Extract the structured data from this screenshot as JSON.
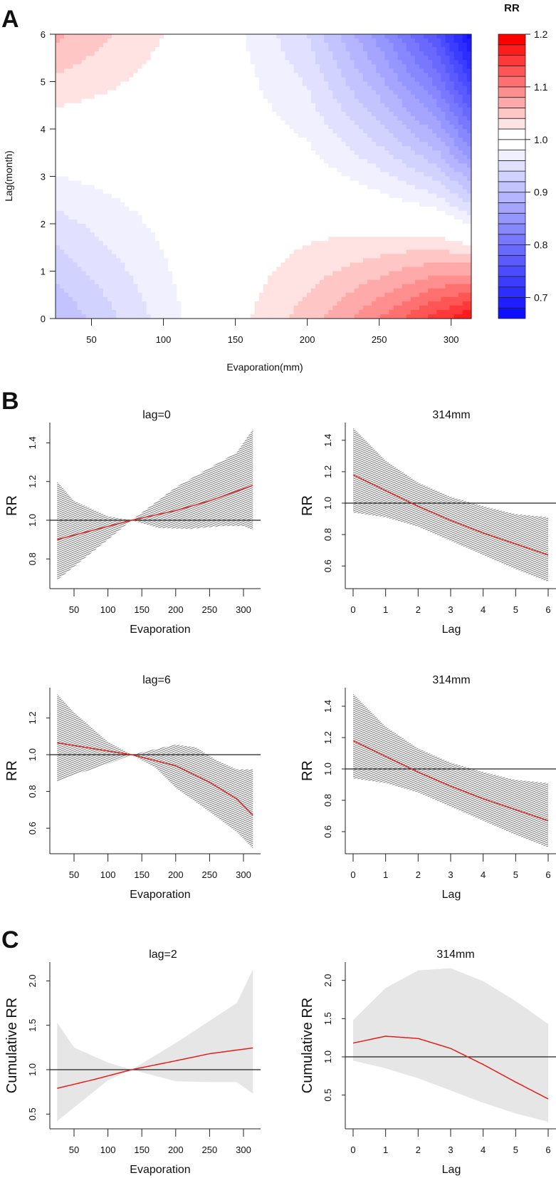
{
  "panel_labels": {
    "a": "A",
    "b": "B",
    "c": "C"
  },
  "colors": {
    "low": "#0000FF",
    "mid": "#FFFFFF",
    "high": "#FF0000",
    "ci_hatch": "#666666",
    "ci_fill": "#E6E6E6",
    "curve": "#E0201B"
  },
  "chart_data": [
    {
      "panel": "A",
      "type": "heatmap",
      "xlabel": "Evaporation(mm)",
      "ylabel": "Lag(month)",
      "xlim": [
        25,
        314
      ],
      "ylim": [
        0,
        6
      ],
      "xticks": [
        "50",
        "100",
        "150",
        "200",
        "250",
        "300"
      ],
      "yticks": [
        "0",
        "1",
        "2",
        "3",
        "4",
        "5",
        "6"
      ],
      "legend_title": "RR",
      "legend_ticks": [
        "0.7",
        "0.8",
        "0.9",
        "1.0",
        "1.1",
        "1.2"
      ],
      "levels": {
        "min": 0.66,
        "max": 1.2,
        "step": 0.02
      },
      "legend_placement": "right"
    },
    {
      "panel": "B",
      "type": "line",
      "title": "lag=0",
      "xlabel": "Evaporation",
      "ylabel": "RR",
      "xticks": [
        "50",
        "100",
        "150",
        "200",
        "250",
        "300"
      ],
      "yticks": [
        "0.8",
        "1.0",
        "1.2",
        "1.4"
      ],
      "reference": 1.0,
      "ci_style": "hatched",
      "rr": {
        "x": [
          25,
          135,
          200,
          250,
          314
        ],
        "y": [
          0.9,
          1.0,
          1.05,
          1.1,
          1.18
        ]
      },
      "upper": {
        "x": [
          25,
          50,
          100,
          135,
          200,
          250,
          290,
          314
        ],
        "y": [
          1.2,
          1.1,
          1.02,
          1.0,
          1.17,
          1.27,
          1.35,
          1.47
        ]
      },
      "lower": {
        "x": [
          25,
          50,
          100,
          135,
          175,
          220,
          270,
          300,
          314
        ],
        "y": [
          0.69,
          0.76,
          0.9,
          1.0,
          0.96,
          0.955,
          0.97,
          0.97,
          0.95
        ]
      }
    },
    {
      "panel": "B",
      "type": "line",
      "title": "314mm",
      "xlabel": "Lag",
      "ylabel": "RR",
      "xticks": [
        "0",
        "1",
        "2",
        "3",
        "4",
        "5",
        "6"
      ],
      "yticks": [
        "0.6",
        "0.8",
        "1.0",
        "1.2",
        "1.4"
      ],
      "reference": 1.0,
      "ci_style": "hatched",
      "rr": {
        "x": [
          0,
          1,
          2,
          3,
          4,
          5,
          6
        ],
        "y": [
          1.18,
          1.08,
          0.98,
          0.89,
          0.81,
          0.74,
          0.67
        ]
      },
      "upper": {
        "x": [
          0,
          1,
          2,
          3,
          4,
          5,
          6
        ],
        "y": [
          1.48,
          1.27,
          1.13,
          1.04,
          0.98,
          0.93,
          0.91
        ]
      },
      "lower": {
        "x": [
          0,
          1,
          2,
          3,
          4,
          5,
          6
        ],
        "y": [
          0.94,
          0.91,
          0.85,
          0.76,
          0.67,
          0.58,
          0.5
        ]
      }
    },
    {
      "panel": "B",
      "type": "line",
      "title": "lag=6",
      "xlabel": "Evaporation",
      "ylabel": "RR",
      "xticks": [
        "50",
        "100",
        "150",
        "200",
        "250",
        "300"
      ],
      "yticks": [
        "0.6",
        "0.8",
        "1.0",
        "1.2"
      ],
      "reference": 1.0,
      "ci_style": "hatched",
      "rr": {
        "x": [
          25,
          100,
          135,
          200,
          250,
          290,
          314
        ],
        "y": [
          1.065,
          1.02,
          1.0,
          0.94,
          0.85,
          0.76,
          0.67
        ]
      },
      "upper": {
        "x": [
          25,
          50,
          100,
          135,
          170,
          200,
          230,
          260,
          290,
          314
        ],
        "y": [
          1.33,
          1.23,
          1.07,
          1.0,
          1.03,
          1.055,
          1.04,
          0.97,
          0.92,
          0.92
        ]
      },
      "lower": {
        "x": [
          25,
          50,
          100,
          135,
          170,
          200,
          250,
          290,
          314
        ],
        "y": [
          0.85,
          0.89,
          0.95,
          1.0,
          0.93,
          0.82,
          0.69,
          0.58,
          0.49
        ]
      }
    },
    {
      "panel": "B",
      "type": "line",
      "title": "314mm",
      "xlabel": "Lag",
      "ylabel": "RR",
      "xticks": [
        "0",
        "1",
        "2",
        "3",
        "4",
        "5",
        "6"
      ],
      "yticks": [
        "0.6",
        "0.8",
        "1.0",
        "1.2",
        "1.4"
      ],
      "reference": 1.0,
      "ci_style": "hatched",
      "rr": {
        "x": [
          0,
          1,
          2,
          3,
          4,
          5,
          6
        ],
        "y": [
          1.18,
          1.08,
          0.98,
          0.89,
          0.81,
          0.74,
          0.67
        ]
      },
      "upper": {
        "x": [
          0,
          1,
          2,
          3,
          4,
          5,
          6
        ],
        "y": [
          1.48,
          1.27,
          1.13,
          1.04,
          0.98,
          0.93,
          0.91
        ]
      },
      "lower": {
        "x": [
          0,
          1,
          2,
          3,
          4,
          5,
          6
        ],
        "y": [
          0.94,
          0.91,
          0.85,
          0.76,
          0.67,
          0.58,
          0.5
        ]
      }
    },
    {
      "panel": "C",
      "type": "line",
      "title": "lag=2",
      "xlabel": "Evaporation",
      "ylabel": "Cumulative RR",
      "xticks": [
        "50",
        "100",
        "150",
        "200",
        "250",
        "300"
      ],
      "yticks": [
        "0.5",
        "1.0",
        "1.5",
        "2.0"
      ],
      "reference": 1.0,
      "ci_style": "shaded",
      "rr": {
        "x": [
          25,
          80,
          135,
          200,
          250,
          314
        ],
        "y": [
          0.79,
          0.89,
          1.0,
          1.1,
          1.18,
          1.245
        ]
      },
      "upper": {
        "x": [
          25,
          50,
          100,
          135,
          200,
          250,
          290,
          314
        ],
        "y": [
          1.53,
          1.25,
          1.08,
          1.0,
          1.3,
          1.55,
          1.75,
          2.13
        ]
      },
      "lower": {
        "x": [
          25,
          100,
          135,
          200,
          250,
          290,
          314
        ],
        "y": [
          0.42,
          0.88,
          1.0,
          0.87,
          0.86,
          0.86,
          0.73
        ]
      }
    },
    {
      "panel": "C",
      "type": "line",
      "title": "314mm",
      "xlabel": "Lag",
      "ylabel": "Cumulative RR",
      "xticks": [
        "0",
        "1",
        "2",
        "3",
        "4",
        "5",
        "6"
      ],
      "yticks": [
        "0.5",
        "1.0",
        "1.5",
        "2.0"
      ],
      "reference": 1.0,
      "ci_style": "shaded",
      "rr": {
        "x": [
          0,
          1,
          2,
          3,
          4,
          5,
          6
        ],
        "y": [
          1.18,
          1.27,
          1.24,
          1.11,
          0.9,
          0.67,
          0.45
        ]
      },
      "upper": {
        "x": [
          0,
          1,
          2,
          3,
          4,
          5,
          6
        ],
        "y": [
          1.48,
          1.9,
          2.13,
          2.16,
          1.99,
          1.73,
          1.43
        ]
      },
      "lower": {
        "x": [
          0,
          1,
          2,
          3,
          4,
          5,
          6
        ],
        "y": [
          0.95,
          0.85,
          0.72,
          0.56,
          0.4,
          0.26,
          0.15
        ]
      }
    }
  ]
}
